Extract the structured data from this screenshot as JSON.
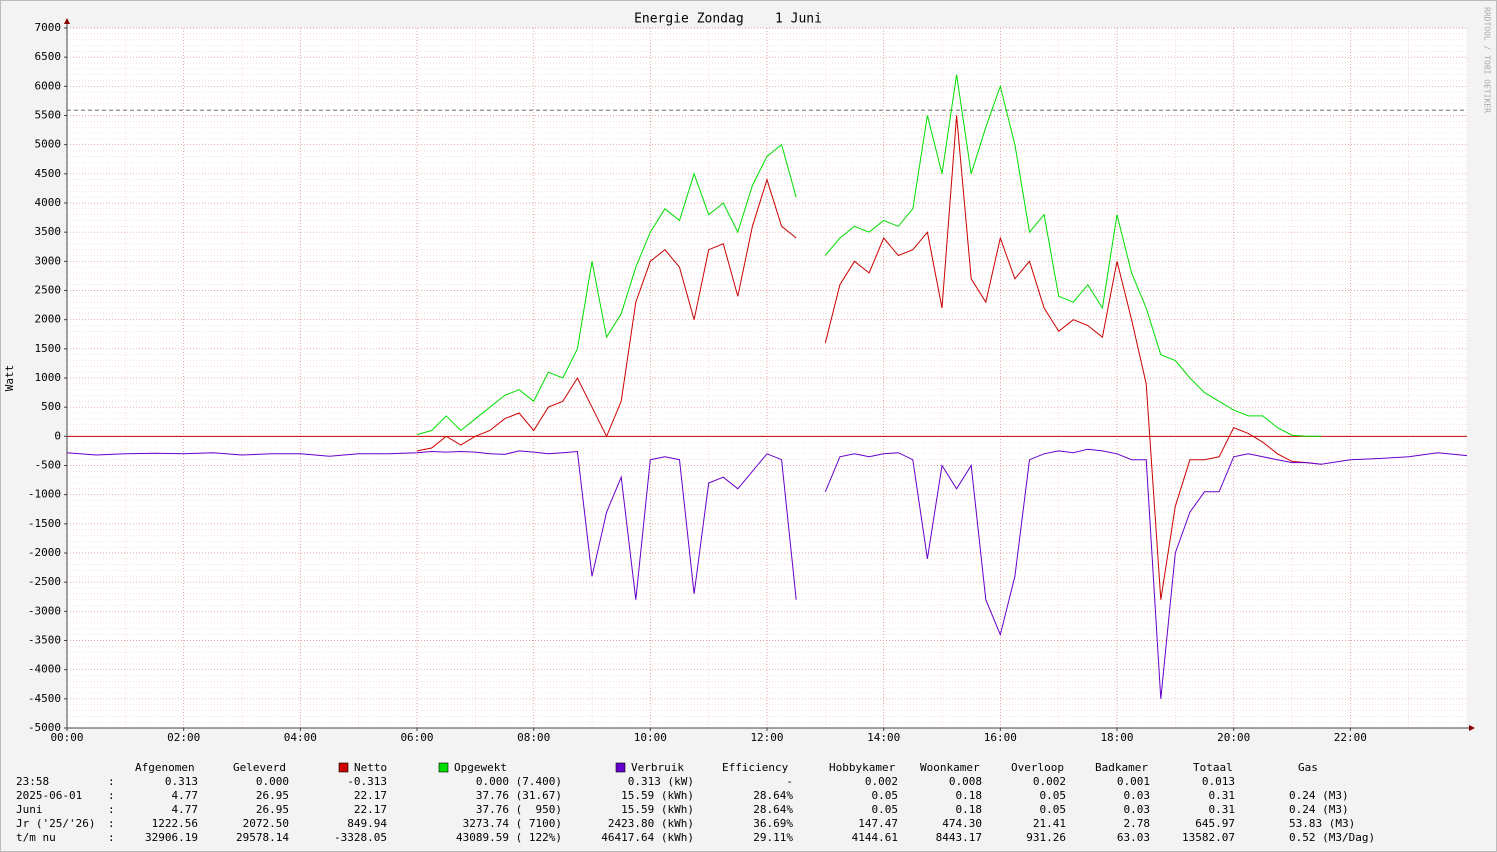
{
  "chart_data": {
    "type": "line",
    "title": "Energie Zondag    1 Juni",
    "y_label": "Watt",
    "watermark": "RRDTOOL / TOBI OETIKER",
    "x": [
      0,
      0.5,
      1,
      1.5,
      2,
      2.5,
      3,
      3.5,
      4,
      4.5,
      5,
      5.5,
      6,
      6.25,
      6.5,
      6.75,
      7,
      7.25,
      7.5,
      7.75,
      8,
      8.25,
      8.5,
      8.75,
      9,
      9.25,
      9.5,
      9.75,
      10,
      10.25,
      10.5,
      10.75,
      11,
      11.25,
      11.5,
      11.75,
      12,
      12.25,
      12.5,
      12.75,
      13,
      13.25,
      13.5,
      13.75,
      14,
      14.25,
      14.5,
      14.75,
      15,
      15.25,
      15.5,
      15.75,
      16,
      16.25,
      16.5,
      16.75,
      17,
      17.25,
      17.5,
      17.75,
      18,
      18.25,
      18.5,
      18.75,
      19,
      19.25,
      19.5,
      19.75,
      20,
      20.25,
      20.5,
      20.75,
      21,
      21.25,
      21.5,
      22,
      22.5,
      23,
      23.5,
      24
    ],
    "series": [
      {
        "name": "Netto",
        "color": "#cc0000",
        "values": [
          null,
          null,
          null,
          null,
          null,
          null,
          null,
          null,
          null,
          null,
          null,
          null,
          -250,
          -200,
          0,
          -150,
          0,
          100,
          300,
          400,
          100,
          500,
          600,
          1000,
          500,
          0,
          600,
          2300,
          3000,
          3200,
          2900,
          2000,
          3200,
          3300,
          2400,
          3600,
          4400,
          3600,
          3400,
          null,
          1600,
          2600,
          3000,
          2800,
          3400,
          3100,
          3200,
          3500,
          2200,
          5500,
          2700,
          2300,
          3400,
          2700,
          3000,
          2200,
          1800,
          2000,
          1900,
          1700,
          3000,
          2000,
          900,
          -2800,
          -1200,
          -400,
          -400,
          -350,
          150,
          50,
          -100,
          -300,
          -430,
          -450,
          -480,
          null,
          null,
          null,
          null,
          null
        ]
      },
      {
        "name": "Opgewekt",
        "color": "#00dd00",
        "values": [
          null,
          null,
          null,
          null,
          null,
          null,
          null,
          null,
          null,
          null,
          null,
          null,
          30,
          100,
          350,
          100,
          300,
          500,
          700,
          800,
          600,
          1100,
          1000,
          1500,
          3000,
          1700,
          2100,
          2900,
          3500,
          3900,
          3700,
          4500,
          3800,
          4000,
          3500,
          4300,
          4800,
          5000,
          4100,
          null,
          3100,
          3400,
          3600,
          3500,
          3700,
          3600,
          3900,
          5500,
          4500,
          6200,
          4500,
          5300,
          6000,
          5000,
          3500,
          3800,
          2400,
          2300,
          2600,
          2200,
          3800,
          2800,
          2200,
          1400,
          1300,
          1000,
          750,
          600,
          450,
          350,
          350,
          150,
          20,
          0,
          0,
          null,
          null,
          null,
          null,
          null
        ]
      },
      {
        "name": "Verbruik",
        "color": "#6600cc",
        "values": [
          -280,
          -320,
          -300,
          -290,
          -300,
          -280,
          -320,
          -300,
          -300,
          -340,
          -300,
          -300,
          -280,
          -260,
          -270,
          -260,
          -270,
          -300,
          -310,
          -250,
          -270,
          -300,
          -280,
          -260,
          -2400,
          -1300,
          -700,
          -2800,
          -400,
          -350,
          -400,
          -2700,
          -800,
          -700,
          -900,
          -600,
          -300,
          -400,
          -2800,
          null,
          -950,
          -350,
          -300,
          -350,
          -300,
          -280,
          -400,
          -2100,
          -500,
          -900,
          -500,
          -2800,
          -3400,
          -2400,
          -400,
          -300,
          -250,
          -280,
          -220,
          -250,
          -300,
          -400,
          -400,
          -4500,
          -2000,
          -1300,
          -950,
          -950,
          -350,
          -300,
          -350,
          -400,
          -450,
          -450,
          -480,
          -400,
          -380,
          -350,
          -280,
          -330
        ]
      }
    ],
    "hline": 5590,
    "xlim": [
      0,
      24
    ],
    "xticks": [
      {
        "value": 0,
        "label": "00:00"
      },
      {
        "value": 2,
        "label": "02:00"
      },
      {
        "value": 4,
        "label": "04:00"
      },
      {
        "value": 6,
        "label": "06:00"
      },
      {
        "value": 8,
        "label": "08:00"
      },
      {
        "value": 10,
        "label": "10:00"
      },
      {
        "value": 12,
        "label": "12:00"
      },
      {
        "value": 14,
        "label": "14:00"
      },
      {
        "value": 16,
        "label": "16:00"
      },
      {
        "value": 18,
        "label": "18:00"
      },
      {
        "value": 20,
        "label": "20:00"
      },
      {
        "value": 22,
        "label": "22:00"
      }
    ],
    "ylim": [
      -5000,
      7000
    ],
    "yticks": [
      -5000,
      -4500,
      -4000,
      -3500,
      -3000,
      -2500,
      -2000,
      -1500,
      -1000,
      -500,
      0,
      500,
      1000,
      1500,
      2000,
      2500,
      3000,
      3500,
      4000,
      4500,
      5000,
      5500,
      6000,
      6500,
      7000
    ],
    "grid": true
  },
  "legend_table": {
    "columns": [
      "Afgenomen",
      "Geleverd",
      "Efficiency",
      "Hobbykamer",
      "Woonkamer",
      "Overloop",
      "Badkamer",
      "Totaal",
      "Gas"
    ],
    "rows": [
      {
        "label": "23:58",
        "separator": ":",
        "cells": [
          "0.313",
          "0.000",
          "-0.313",
          "0.000 (7.400)",
          "0.313 (kW)",
          "-",
          "0.002",
          "0.008",
          "0.002",
          "0.001",
          "0.013"
        ]
      },
      {
        "label": "2025-06-01",
        "separator": ":",
        "cells": [
          "4.77",
          "26.95",
          "22.17",
          "37.76 (31.67)",
          "15.59 (kWh)",
          "28.64%",
          "0.05",
          "0.18",
          "0.05",
          "0.03",
          "0.31",
          "0.24 (M3)"
        ]
      },
      {
        "label": "Juni",
        "separator": ":",
        "cells": [
          "4.77",
          "26.95",
          "22.17",
          "37.76 (  950)",
          "15.59 (kWh)",
          "28.64%",
          "0.05",
          "0.18",
          "0.05",
          "0.03",
          "0.31",
          "0.24 (M3)"
        ]
      },
      {
        "label": "Jr ('25/'26)",
        "separator": ":",
        "cells": [
          "1222.56",
          "2072.50",
          "849.94",
          "3273.74 ( 7100)",
          "2423.80 (kWh)",
          "36.69%",
          "147.47",
          "474.30",
          "21.41",
          "2.78",
          "645.97",
          "53.83 (M3)"
        ]
      },
      {
        "label": "t/m nu",
        "separator": ":",
        "cells": [
          "32906.19",
          "29578.14",
          "-3328.05",
          "43089.59 ( 122%)",
          "46417.64 (kWh)",
          "29.11%",
          "4144.61",
          "8443.17",
          "931.26",
          "63.03",
          "13582.07",
          "0.52 (M3/Dag)"
        ]
      }
    ]
  }
}
